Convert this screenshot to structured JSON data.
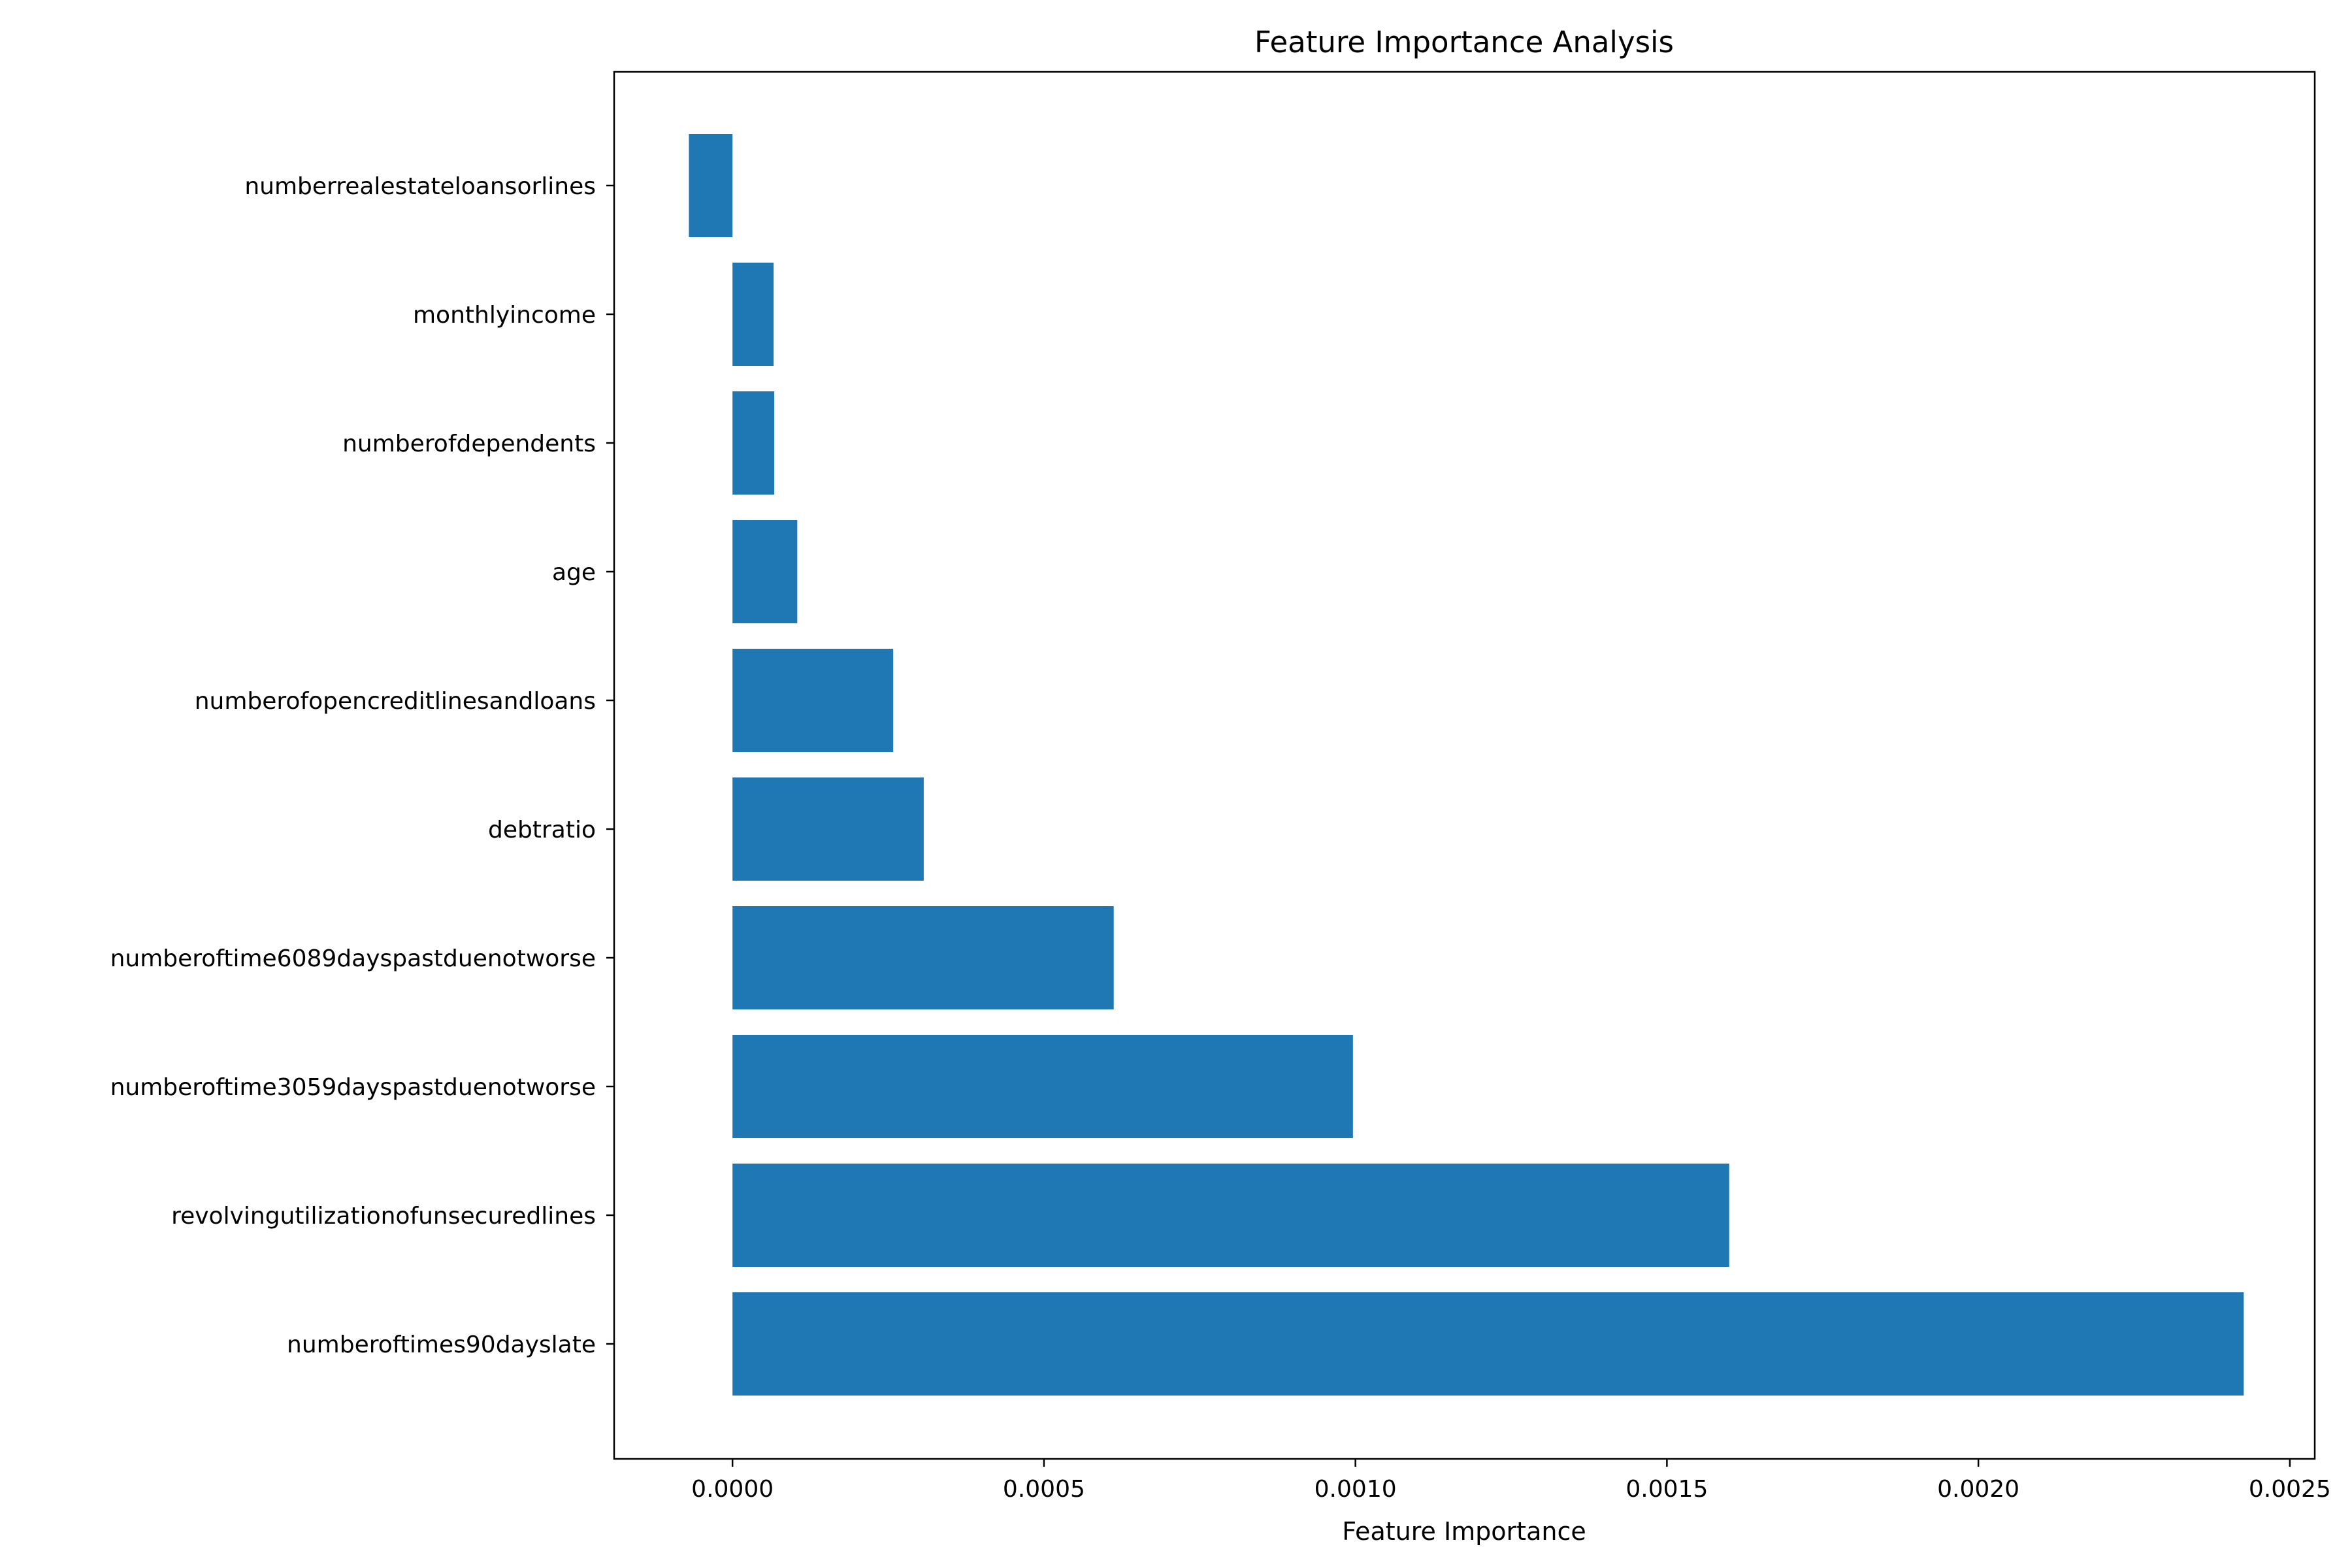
{
  "chart_data": {
    "type": "bar",
    "orientation": "horizontal",
    "title": "Feature Importance Analysis",
    "xlabel": "Feature Importance",
    "ylabel": "",
    "xlim": [
      -0.00019,
      0.00254
    ],
    "xticks": [
      0,
      0.0005,
      0.001,
      0.0015,
      0.002,
      0.0025
    ],
    "xtick_labels": [
      "0.0000",
      "0.0005",
      "0.0010",
      "0.0015",
      "0.0020",
      "0.0025"
    ],
    "grid": false,
    "legend": "none",
    "bar_color": "#1f77b4",
    "categories": [
      "numberrealestateloansorlines",
      "monthlyincome",
      "numberofdependents",
      "age",
      "numberofopencreditlinesandloans",
      "debtratio",
      "numberoftime6089dayspastduenotworse",
      "numberoftime3059dayspastduenotworse",
      "revolvingutilizationofunsecuredlines",
      "numberoftimes90dayslate"
    ],
    "values": [
      -7e-05,
      6.6e-05,
      6.7e-05,
      0.000104,
      0.000258,
      0.000307,
      0.000612,
      0.000996,
      0.0016,
      0.002426
    ]
  }
}
